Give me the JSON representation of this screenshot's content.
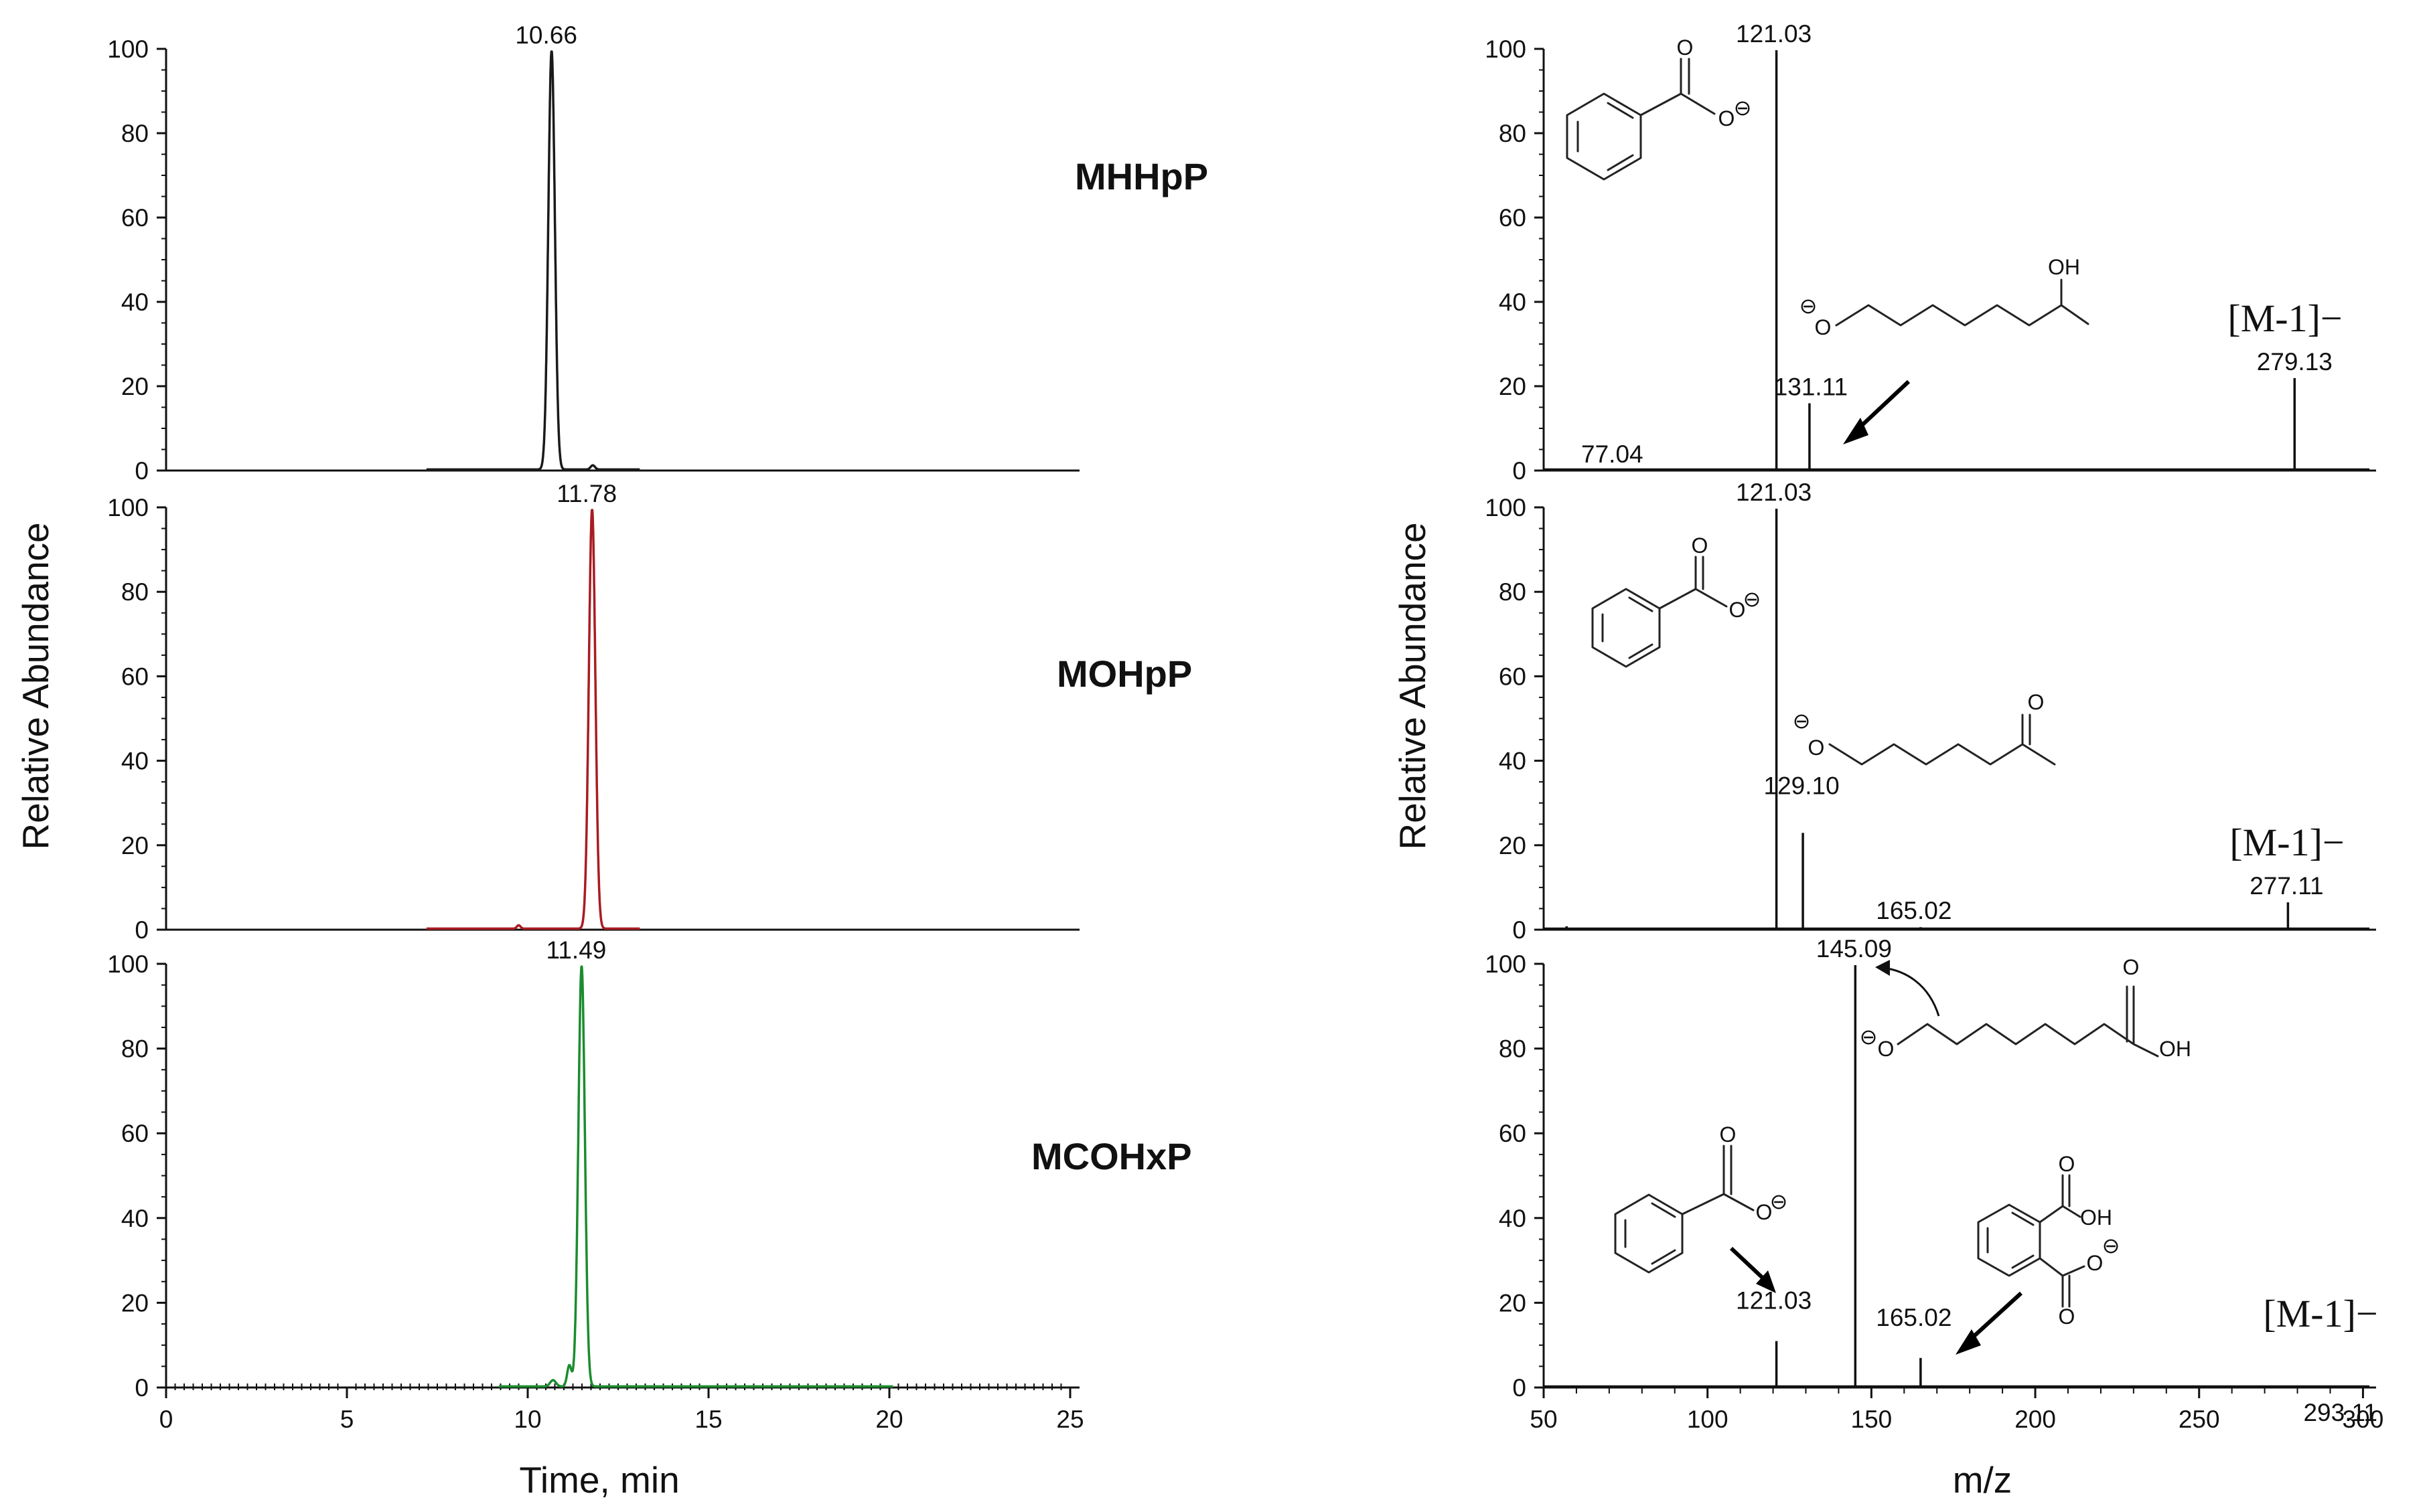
{
  "chart_data": [
    {
      "type": "line",
      "panel": "chromatogram-1",
      "compound": "MHHpP",
      "color": "#1a1a1a",
      "xlim": [
        0,
        25
      ],
      "ylim": [
        0,
        100
      ],
      "xticks": [
        0,
        5,
        10,
        15,
        20,
        25
      ],
      "yticks": [
        0,
        20,
        40,
        60,
        80,
        100
      ],
      "trace_range": [
        7.2,
        13.1
      ],
      "peaks": [
        {
          "x": 10.66,
          "height": 100,
          "width": 0.09,
          "label": "10.66"
        },
        {
          "x": 11.8,
          "height": 1,
          "width": 0.06,
          "label": ""
        }
      ]
    },
    {
      "type": "line",
      "panel": "chromatogram-2",
      "compound": "MOHpP",
      "color": "#a81c22",
      "xlim": [
        0,
        25
      ],
      "ylim": [
        0,
        100
      ],
      "xticks": [
        0,
        5,
        10,
        15,
        20,
        25
      ],
      "yticks": [
        0,
        20,
        40,
        60,
        80,
        100
      ],
      "trace_range": [
        7.2,
        13.1
      ],
      "peaks": [
        {
          "x": 11.78,
          "height": 100,
          "width": 0.09,
          "label": "11.78"
        },
        {
          "x": 9.75,
          "height": 0.8,
          "width": 0.05,
          "label": ""
        }
      ]
    },
    {
      "type": "line",
      "panel": "chromatogram-3",
      "compound": "MCOHxP",
      "color": "#1b8c2e",
      "xlim": [
        0,
        25
      ],
      "ylim": [
        0,
        100
      ],
      "xticks": [
        0,
        5,
        10,
        15,
        20,
        25
      ],
      "yticks": [
        0,
        20,
        40,
        60,
        80,
        100
      ],
      "trace_range": [
        9.2,
        20.1
      ],
      "peaks": [
        {
          "x": 11.49,
          "height": 100,
          "width": 0.09,
          "label": "11.49"
        },
        {
          "x": 10.7,
          "height": 1.5,
          "width": 0.08,
          "label": ""
        },
        {
          "x": 11.15,
          "height": 5,
          "width": 0.06,
          "label": ""
        }
      ],
      "xlabel": "Time, min"
    },
    {
      "type": "bar",
      "panel": "spectrum-1",
      "xlim": [
        50,
        304
      ],
      "ylim": [
        0,
        100
      ],
      "yticks": [
        0,
        20,
        40,
        60,
        80,
        100
      ],
      "peaks": [
        {
          "mz": 77.04,
          "intensity": 0.4,
          "label": "77.04"
        },
        {
          "mz": 121.03,
          "intensity": 100,
          "label": "121.03"
        },
        {
          "mz": 131.11,
          "intensity": 16,
          "label": "131.11"
        },
        {
          "mz": 279.13,
          "intensity": 22,
          "label": "279.13"
        }
      ],
      "ion_label": "[M-1]−",
      "chem_labels": [
        "O",
        "O",
        "⊖",
        "⊖",
        "O",
        "OH"
      ]
    },
    {
      "type": "bar",
      "panel": "spectrum-2",
      "xlim": [
        50,
        304
      ],
      "ylim": [
        0,
        100
      ],
      "yticks": [
        0,
        20,
        40,
        60,
        80,
        100
      ],
      "peaks": [
        {
          "mz": 121.03,
          "intensity": 100,
          "label": "121.03"
        },
        {
          "mz": 129.1,
          "intensity": 23,
          "label": "129.10"
        },
        {
          "mz": 165.02,
          "intensity": 0.6,
          "label": "165.02"
        },
        {
          "mz": 277.11,
          "intensity": 6.5,
          "label": "277.11"
        },
        {
          "mz": 57,
          "intensity": 0.8,
          "label": ""
        }
      ],
      "ion_label": "[M-1]−",
      "chem_labels": [
        "O",
        "O",
        "⊖",
        "⊖",
        "O",
        "O"
      ]
    },
    {
      "type": "bar",
      "panel": "spectrum-3",
      "xlim": [
        50,
        304
      ],
      "ylim": [
        0,
        100
      ],
      "xticks": [
        50,
        100,
        150,
        200,
        250,
        300
      ],
      "yticks": [
        0,
        20,
        40,
        60,
        80,
        100
      ],
      "peaks": [
        {
          "mz": 121.03,
          "intensity": 11,
          "label": "121.03"
        },
        {
          "mz": 145.09,
          "intensity": 100,
          "label": "145.09"
        },
        {
          "mz": 165.02,
          "intensity": 7,
          "label": "165.02"
        },
        {
          "mz": 293.11,
          "intensity": 0.4,
          "label": "293.11"
        }
      ],
      "ion_label": "[M-1]−",
      "chem_labels": [
        "⊖",
        "O",
        "O",
        "OH",
        "O",
        "O",
        "⊖",
        "O",
        "OH",
        "O",
        "O",
        "⊖"
      ],
      "xlabel": "m/z"
    }
  ],
  "left_ylabel": "Relative Abundance",
  "right_ylabel": "Relative Abundance"
}
